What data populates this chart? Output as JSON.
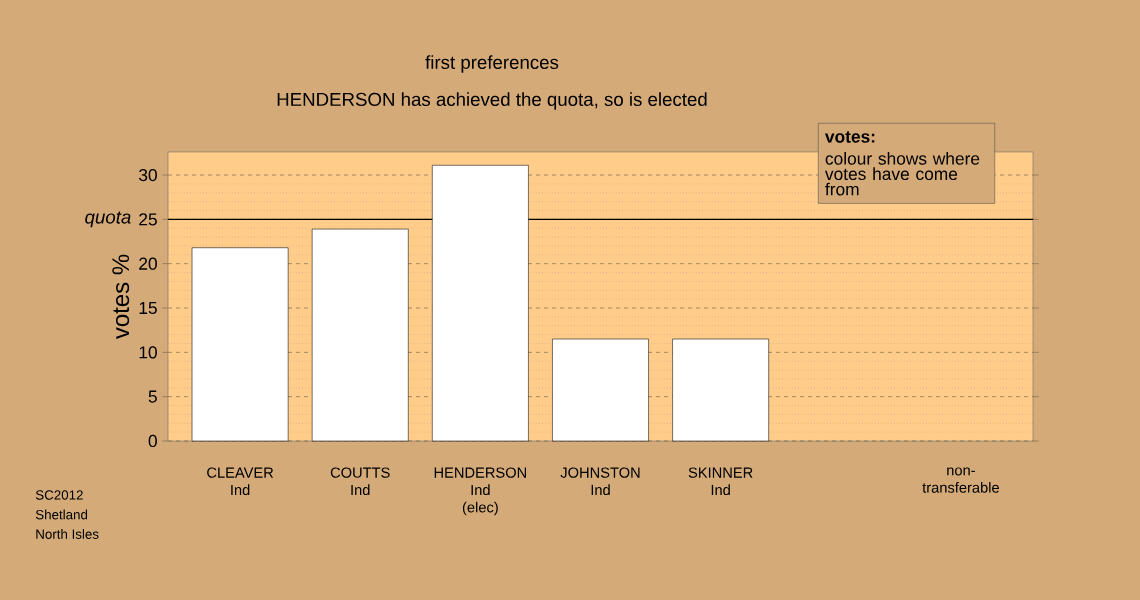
{
  "chart_data": {
    "type": "bar",
    "title": "first preferences",
    "subtitle": "HENDERSON has achieved the quota, so is elected",
    "ylabel": "votes %",
    "categories": [
      "CLEAVER Ind",
      "COUTTS Ind",
      "HENDERSON Ind (elec)",
      "JOHNSTON Ind",
      "SKINNER Ind",
      null,
      "non-transferable"
    ],
    "values": [
      21.8,
      23.9,
      31.1,
      11.5,
      11.5,
      null,
      null
    ],
    "color": "#ffffff",
    "ylim": [
      0,
      32.6
    ],
    "yticks": [
      0,
      5,
      10,
      15,
      20,
      25,
      30
    ],
    "grid": "y",
    "ref_lines": [
      {
        "axis": "y",
        "value": 25,
        "label": "quota",
        "color": "#000000"
      }
    ],
    "annotations": [
      "votes:",
      "colour shows where votes have come from",
      "SC2012",
      "Shetland",
      "North Isles"
    ]
  }
}
